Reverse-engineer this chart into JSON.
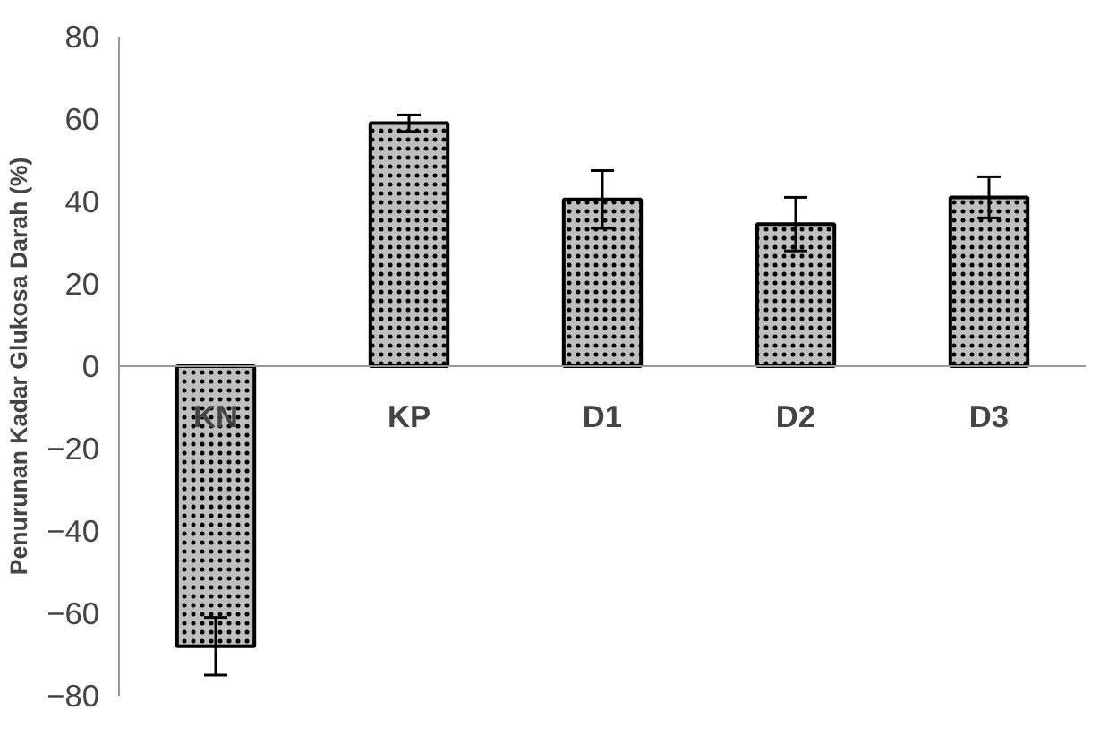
{
  "chart_data": {
    "type": "bar",
    "categories": [
      "KN",
      "KP",
      "D1",
      "D2",
      "D3"
    ],
    "values": [
      -68,
      59,
      40.5,
      34.5,
      41
    ],
    "errors": [
      7,
      2,
      7,
      6.5,
      5
    ],
    "color": "#bfbfbf",
    "ylabel": "Penurunan Kadar Glukosa Darah (%)",
    "ylim": [
      -80,
      80
    ],
    "yticks": [
      -80,
      -60,
      -40,
      -20,
      0,
      20,
      40,
      60,
      80
    ],
    "grid": false
  }
}
